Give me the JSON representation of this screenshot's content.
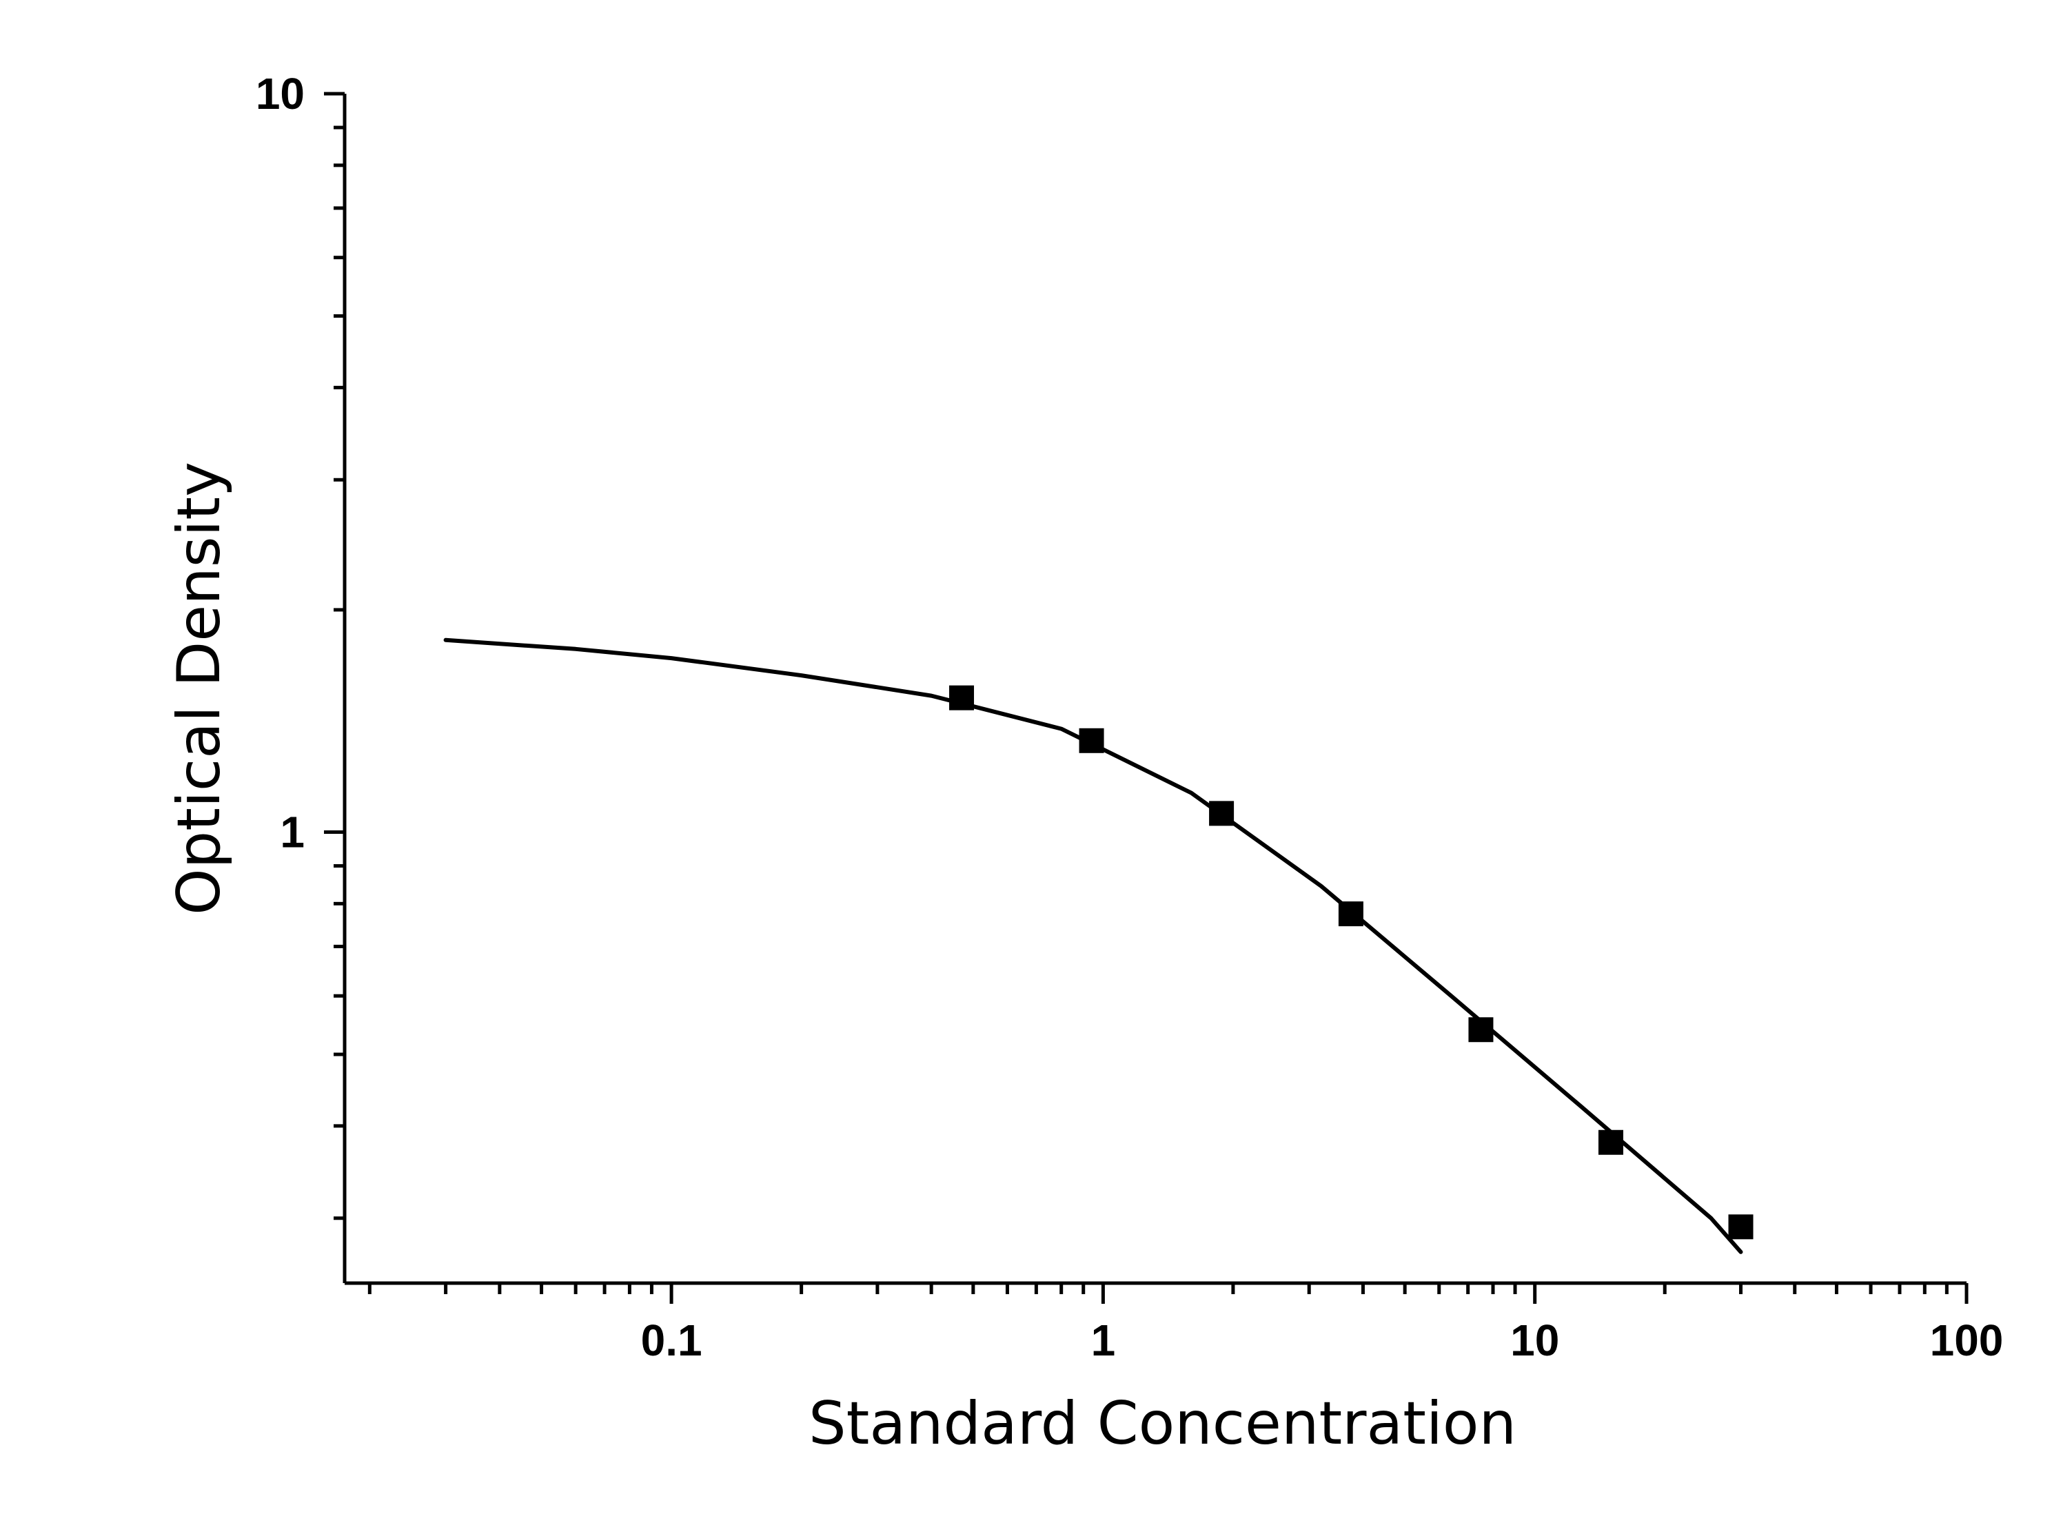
{
  "chart_data": {
    "type": "scatter",
    "title": "",
    "xlabel": "Standard Concentration",
    "ylabel": "Optical Density",
    "xscale": "log",
    "yscale": "log",
    "xlim": [
      0.0175,
      100
    ],
    "ylim": [
      0.245,
      10
    ],
    "grid": false,
    "legend": "none",
    "x_ticks": [
      {
        "value": 0.1,
        "label": "0.1"
      },
      {
        "value": 1,
        "label": "1"
      },
      {
        "value": 10,
        "label": "10"
      },
      {
        "value": 100,
        "label": "100"
      }
    ],
    "y_ticks": [
      {
        "value": 1,
        "label": "1"
      },
      {
        "value": 10,
        "label": "10"
      }
    ],
    "series": [
      {
        "kind": "points",
        "marker": "square",
        "color": "#000000",
        "x": [
          0.47,
          0.94,
          1.88,
          3.75,
          7.5,
          15,
          30
        ],
        "y": [
          1.52,
          1.33,
          1.06,
          0.775,
          0.54,
          0.38,
          0.292
        ]
      },
      {
        "kind": "fit-curve",
        "color": "#000000",
        "x": [
          0.03,
          0.06,
          0.1,
          0.2,
          0.4,
          0.8,
          1.6,
          3.2,
          6.4,
          12.8,
          25.6,
          30
        ],
        "y": [
          1.82,
          1.77,
          1.72,
          1.63,
          1.53,
          1.38,
          1.13,
          0.845,
          0.6,
          0.425,
          0.3,
          0.27
        ]
      }
    ]
  }
}
